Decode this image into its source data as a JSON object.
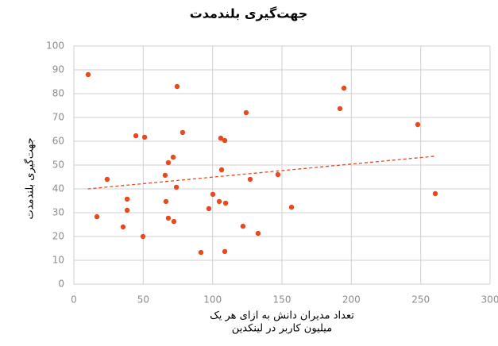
{
  "chart_data": {
    "type": "scatter",
    "title": "جهت‌گیری بلندمدت",
    "y_label": "جهت‌گیری بلندمدت",
    "x_label": [
      "تعداد مدیران دانش به ازای هر یک",
      "میلیون کاربر در لینکدین"
    ],
    "color": "#e8491d",
    "grid": true,
    "xlim": [
      0,
      300
    ],
    "xticks": [
      0,
      50,
      100,
      150,
      200,
      250,
      300
    ],
    "ylim": [
      0,
      100
    ],
    "yticks": [
      0,
      10,
      20,
      30,
      40,
      50,
      60,
      70,
      80,
      90,
      100
    ],
    "x": [
      10.3,
      16.6,
      24,
      35.5,
      38.4,
      38.4,
      44.7,
      49.8,
      51,
      65.8,
      66.4,
      68.1,
      68.1,
      71.6,
      72.1,
      73.9,
      74.4,
      78.4,
      91.6,
      97.3,
      100.2,
      104.8,
      105.9,
      106.5,
      108.8,
      109.4,
      108.8,
      121.9,
      124.2,
      127.1,
      132.8,
      147.1,
      156.9,
      191.8,
      194.7,
      247.9,
      260.5
    ],
    "y": [
      88,
      28.3,
      44,
      24,
      35.7,
      31,
      62.3,
      20,
      61.7,
      45.7,
      34.7,
      51,
      27.7,
      53.3,
      26.3,
      40.7,
      83,
      63.7,
      13.3,
      31.7,
      37.7,
      34.7,
      61.3,
      48,
      60.3,
      34,
      13.7,
      24.3,
      72,
      44,
      21.3,
      46,
      32.3,
      73.7,
      82.3,
      67,
      38
    ],
    "trendline": {
      "x": [
        10,
        260
      ],
      "y": [
        40,
        53.7
      ]
    }
  }
}
